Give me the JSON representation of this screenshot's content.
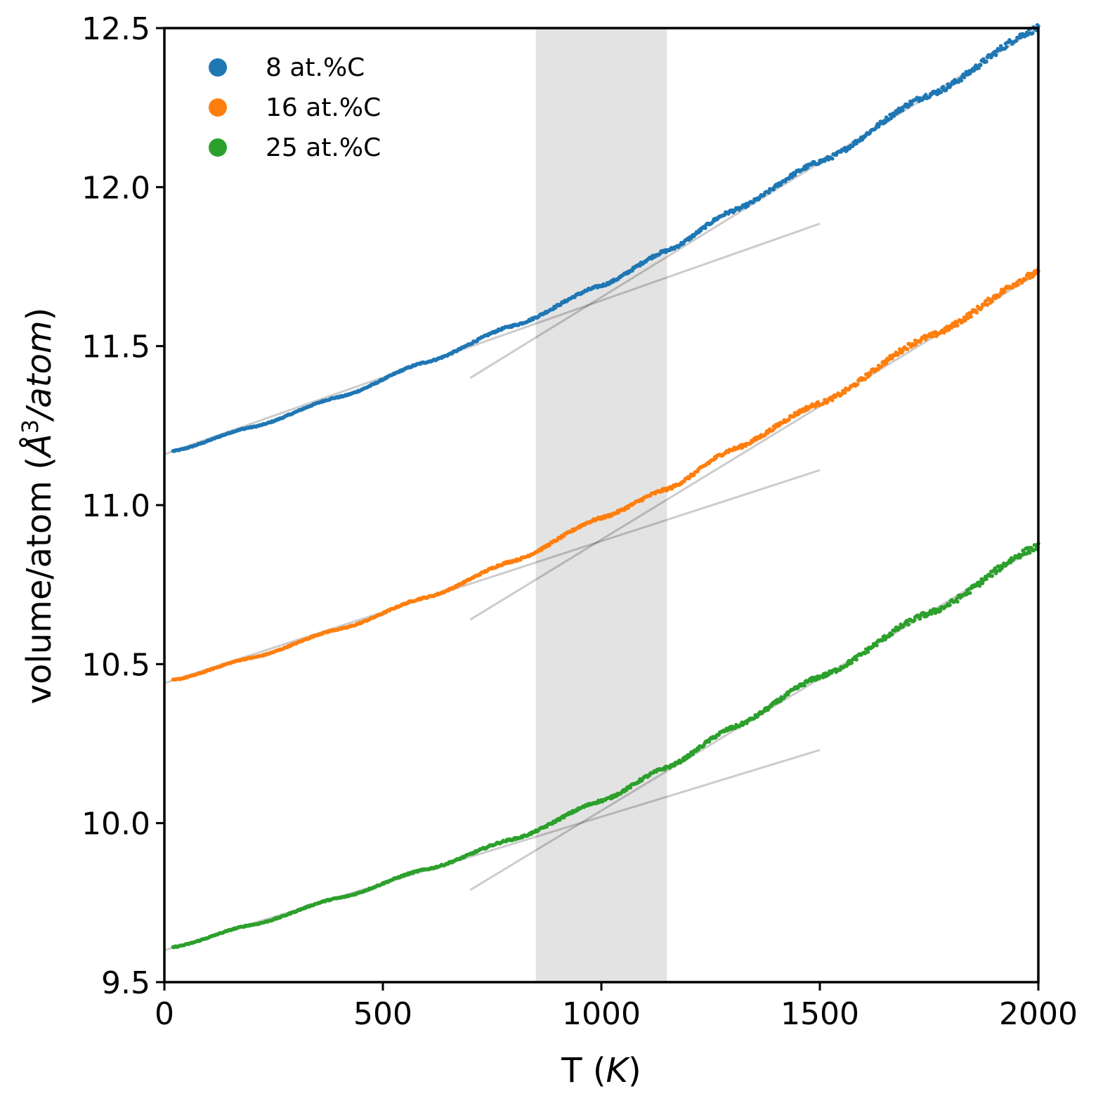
{
  "chart_data": {
    "type": "scatter",
    "title": "",
    "xlabel_main": "T ",
    "xlabel_unit": "K",
    "ylabel_main": "volume/atom  ",
    "ylabel_unit_symbol": "Å",
    "ylabel_unit_exp": "3",
    "ylabel_unit_rest": "/atom",
    "xlim": [
      0,
      2000
    ],
    "ylim": [
      9.5,
      12.5
    ],
    "x_ticks": [
      "0",
      "500",
      "1000",
      "1500",
      "2000"
    ],
    "y_ticks": [
      "9.5",
      "10.0",
      "10.5",
      "11.0",
      "11.5",
      "12.0",
      "12.5"
    ],
    "grid": false,
    "legend_position": "top-left",
    "shaded_band": {
      "x_start": 850,
      "x_end": 1150,
      "color": "#e3e3e3"
    },
    "series": [
      {
        "name": "8 at.%C",
        "color": "#1f77b4",
        "points": [
          [
            20,
            11.17
          ],
          [
            200,
            11.245
          ],
          [
            400,
            11.34
          ],
          [
            600,
            11.45
          ],
          [
            800,
            11.565
          ],
          [
            1000,
            11.69
          ],
          [
            1150,
            11.8
          ],
          [
            1300,
            11.925
          ],
          [
            1500,
            12.08
          ],
          [
            1750,
            12.29
          ],
          [
            2000,
            12.5
          ]
        ],
        "fit_low": [
          [
            0,
            11.16
          ],
          [
            1500,
            11.885
          ]
        ],
        "fit_high": [
          [
            700,
            11.4
          ],
          [
            2000,
            12.5
          ]
        ]
      },
      {
        "name": "16 at.%C",
        "color": "#ff7f0e",
        "points": [
          [
            20,
            10.45
          ],
          [
            200,
            10.52
          ],
          [
            400,
            10.61
          ],
          [
            600,
            10.71
          ],
          [
            800,
            10.825
          ],
          [
            1000,
            10.96
          ],
          [
            1150,
            11.05
          ],
          [
            1300,
            11.175
          ],
          [
            1500,
            11.32
          ],
          [
            1750,
            11.53
          ],
          [
            2000,
            11.73
          ]
        ],
        "fit_low": [
          [
            0,
            10.44
          ],
          [
            1500,
            11.11
          ]
        ],
        "fit_high": [
          [
            700,
            10.64
          ],
          [
            2000,
            11.73
          ]
        ]
      },
      {
        "name": "25 at.%C",
        "color": "#2ca02c",
        "points": [
          [
            20,
            9.61
          ],
          [
            200,
            9.68
          ],
          [
            400,
            9.765
          ],
          [
            600,
            9.855
          ],
          [
            800,
            9.95
          ],
          [
            1000,
            10.07
          ],
          [
            1150,
            10.175
          ],
          [
            1300,
            10.3
          ],
          [
            1500,
            10.46
          ],
          [
            1750,
            10.66
          ],
          [
            2000,
            10.87
          ]
        ],
        "fit_low": [
          [
            0,
            9.6
          ],
          [
            1500,
            10.23
          ]
        ],
        "fit_high": [
          [
            700,
            9.79
          ],
          [
            2000,
            10.87
          ]
        ]
      }
    ]
  }
}
